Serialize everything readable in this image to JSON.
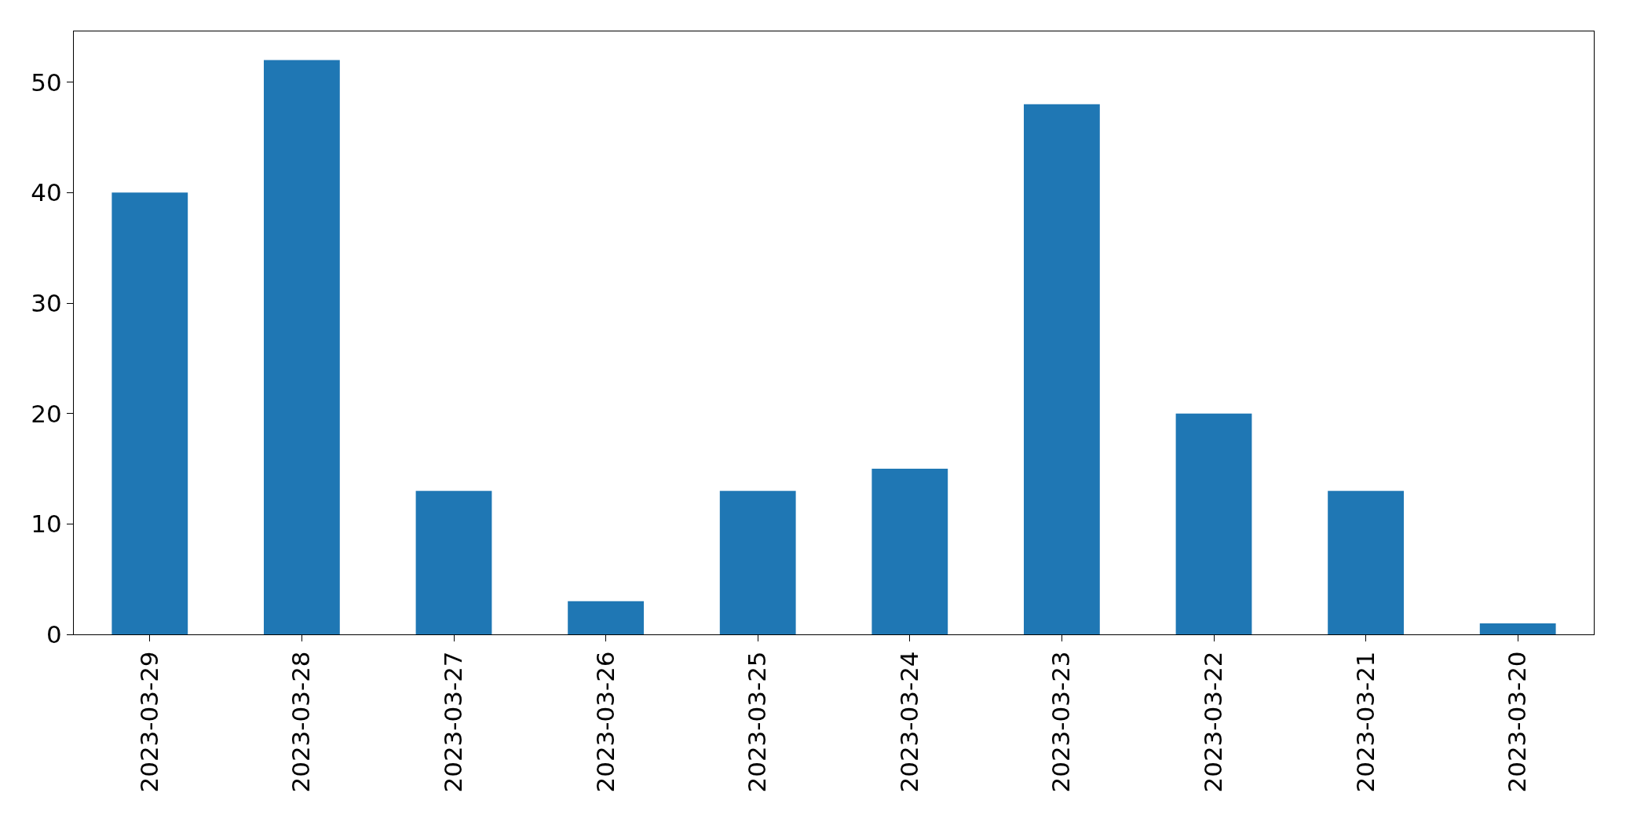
{
  "chart_data": {
    "type": "bar",
    "categories": [
      "2023-03-29",
      "2023-03-28",
      "2023-03-27",
      "2023-03-26",
      "2023-03-25",
      "2023-03-24",
      "2023-03-23",
      "2023-03-22",
      "2023-03-21",
      "2023-03-20"
    ],
    "values": [
      40,
      52,
      13,
      3,
      13,
      15,
      48,
      20,
      13,
      1
    ],
    "color": "#1f77b4",
    "ylim": [
      0,
      54.6
    ],
    "yticks": [
      0,
      10,
      20,
      30,
      40,
      50
    ]
  }
}
